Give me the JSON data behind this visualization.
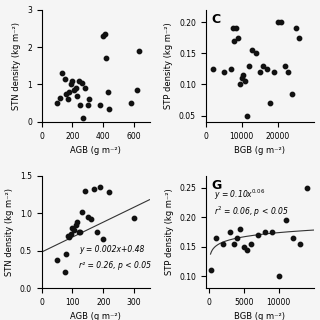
{
  "panel_A": {
    "label": "",
    "x": [
      100,
      120,
      130,
      150,
      160,
      170,
      180,
      190,
      200,
      210,
      220,
      230,
      240,
      250,
      260,
      270,
      280,
      300,
      310,
      380,
      400,
      410,
      420,
      430,
      440,
      580,
      620,
      630
    ],
    "y": [
      0.5,
      0.65,
      1.3,
      1.15,
      0.75,
      0.6,
      0.8,
      1.0,
      1.1,
      0.85,
      0.9,
      0.7,
      1.1,
      0.45,
      1.05,
      0.1,
      0.9,
      0.45,
      0.6,
      0.45,
      2.3,
      2.35,
      1.7,
      0.8,
      0.35,
      0.5,
      0.85,
      1.9
    ],
    "xlabel": "AGB (g m⁻²)",
    "ylabel": "STN density (kg m⁻²)",
    "xlim": [
      0,
      700
    ],
    "ylim": [
      0,
      3
    ],
    "xticks": [
      0,
      200,
      400,
      600
    ],
    "yticks": [
      0,
      1,
      2,
      3
    ]
  },
  "panel_C": {
    "label": "C",
    "x": [
      2000,
      5000,
      7000,
      7500,
      8000,
      8500,
      9000,
      9500,
      10000,
      10500,
      11000,
      11500,
      12000,
      13000,
      14000,
      15000,
      16000,
      17000,
      18000,
      19000,
      20000,
      21000,
      22000,
      23000,
      24000,
      25000,
      26000
    ],
    "y": [
      0.125,
      0.12,
      0.125,
      0.19,
      0.17,
      0.19,
      0.175,
      0.1,
      0.11,
      0.115,
      0.105,
      0.05,
      0.13,
      0.155,
      0.15,
      0.12,
      0.13,
      0.125,
      0.07,
      0.12,
      0.2,
      0.2,
      0.13,
      0.12,
      0.085,
      0.19,
      0.175
    ],
    "xlabel": "BGB (g m⁻²)",
    "ylabel": "STP density (kg m⁻²)",
    "xlim": [
      0,
      30000
    ],
    "ylim": [
      0.04,
      0.22
    ],
    "xticks": [
      0,
      10000,
      20000
    ],
    "yticks": [
      0.05,
      0.1,
      0.15,
      0.2
    ]
  },
  "panel_E": {
    "label": "",
    "x": [
      50,
      75,
      80,
      85,
      90,
      95,
      100,
      105,
      110,
      115,
      120,
      125,
      130,
      140,
      150,
      160,
      170,
      180,
      190,
      200,
      220,
      300
    ],
    "y": [
      0.38,
      0.22,
      0.46,
      0.7,
      0.68,
      0.72,
      0.8,
      0.78,
      0.84,
      0.88,
      0.75,
      0.75,
      1.02,
      1.3,
      0.95,
      0.92,
      1.32,
      0.75,
      1.35,
      0.65,
      1.28,
      0.94
    ],
    "xlabel": "AGB (g m⁻²)",
    "ylabel": "STN density (kg m⁻²)",
    "xlim": [
      0,
      350
    ],
    "ylim": [
      0.0,
      1.5
    ],
    "xticks": [
      0,
      100,
      200,
      300
    ],
    "yticks": [
      0.0,
      0.5,
      1.0,
      1.5
    ],
    "fit_eq": "y = 0.002x+0.48",
    "fit_r2": "r² = 0.26, p < 0.05",
    "fit_x": [
      0,
      350
    ],
    "fit_y": [
      0.48,
      1.18
    ]
  },
  "panel_G": {
    "label": "G",
    "x": [
      200,
      1000,
      2000,
      3000,
      3500,
      4000,
      4500,
      5000,
      5500,
      6000,
      7000,
      8000,
      9000,
      10000,
      11000,
      12000,
      13000,
      14000
    ],
    "y": [
      0.11,
      0.165,
      0.155,
      0.175,
      0.155,
      0.165,
      0.18,
      0.15,
      0.145,
      0.155,
      0.17,
      0.175,
      0.175,
      0.1,
      0.195,
      0.165,
      0.155,
      0.25
    ],
    "xlabel": "BGB (g m⁻²)",
    "ylabel": "STP density (kg m⁻²)",
    "xlim": [
      -500,
      15000
    ],
    "ylim": [
      0.08,
      0.27
    ],
    "xticks": [
      0,
      5000,
      10000
    ],
    "yticks": [
      0.1,
      0.15,
      0.2,
      0.25
    ],
    "fit_eq": "y = 0.10x^0.06",
    "fit_r2": "r² = 0.06, p < 0.05"
  },
  "bg_color": "#f5f5f5",
  "dot_color": "#111111",
  "dot_size": 10,
  "line_color": "#333333",
  "font_size": 6,
  "label_font_size": 9
}
